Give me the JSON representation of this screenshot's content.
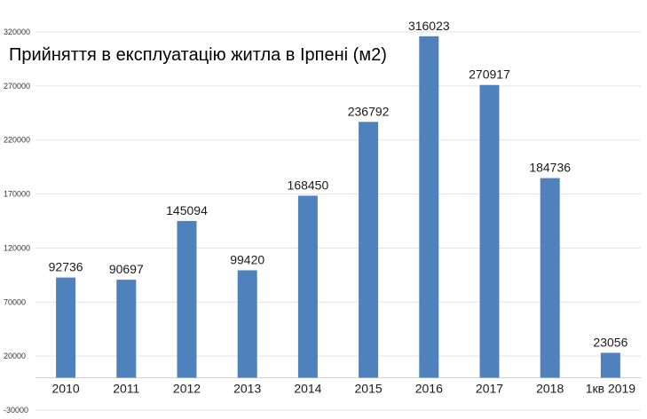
{
  "chart_data": {
    "type": "bar",
    "title": "Прийняття в експлуатацію житла в Ірпені (м2)",
    "categories": [
      "2010",
      "2011",
      "2012",
      "2013",
      "2014",
      "2015",
      "2016",
      "2017",
      "2018",
      "1кв 2019"
    ],
    "values": [
      92736,
      90697,
      145094,
      99420,
      168450,
      236792,
      316023,
      270917,
      184736,
      23056
    ],
    "data_labels": [
      "92736",
      "90697",
      "145094",
      "99420",
      "168450",
      "236792",
      "316023",
      "270917",
      "184736",
      "23056"
    ],
    "ylim": [
      -30000,
      320000
    ],
    "yticks": [
      -30000,
      20000,
      70000,
      120000,
      170000,
      220000,
      270000,
      320000
    ],
    "ytick_labels": [
      "-30000",
      "20000",
      "70000",
      "120000",
      "170000",
      "220000",
      "270000",
      "320000"
    ],
    "xlabel": "",
    "ylabel": "",
    "grid": true,
    "legend": "none",
    "bar_color": "#4f81bd"
  }
}
